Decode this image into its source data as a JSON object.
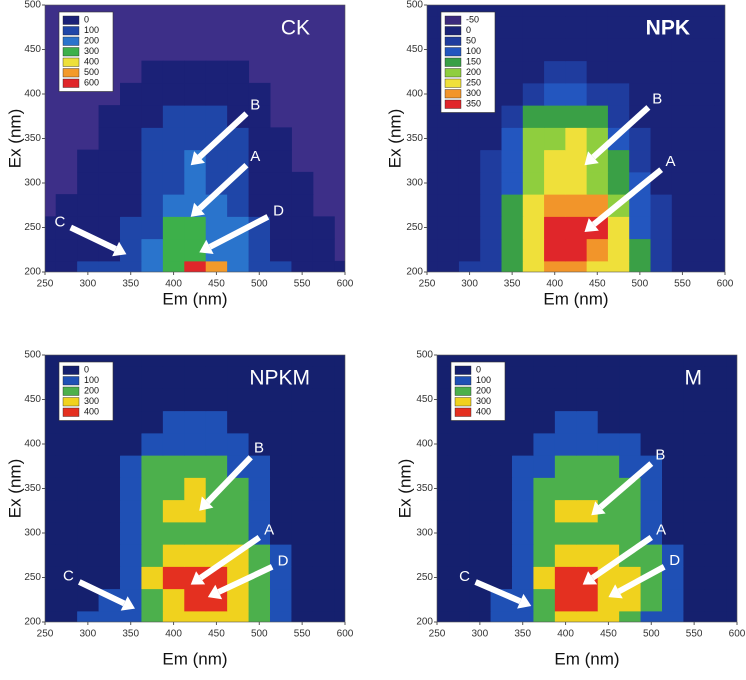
{
  "chart_data": [
    {
      "type": "contour",
      "title": "CK",
      "xlabel": "Em (nm)",
      "ylabel": "Ex (nm)",
      "xlim": [
        250,
        600
      ],
      "ylim": [
        200,
        500
      ],
      "xticks": [
        250,
        300,
        350,
        400,
        450,
        500,
        550,
        600
      ],
      "yticks": [
        200,
        250,
        300,
        350,
        400,
        450,
        500
      ],
      "background": "#3d2f88",
      "levels": [
        0,
        100,
        200,
        300,
        400,
        500,
        600
      ],
      "colors": [
        "#1b2177",
        "#1f46a8",
        "#2a74cc",
        "#3db04a",
        "#ede03a",
        "#f39a2a",
        "#e0262a"
      ],
      "x": [
        250,
        275,
        300,
        325,
        350,
        375,
        400,
        425,
        450,
        475,
        500,
        525,
        550,
        575,
        600
      ],
      "y": [
        200,
        225,
        250,
        275,
        300,
        325,
        350,
        375,
        400,
        425,
        450,
        475,
        500
      ],
      "z": [
        [
          60,
          80,
          110,
          120,
          150,
          200,
          300,
          600,
          500,
          250,
          150,
          100,
          60,
          20,
          0
        ],
        [
          20,
          40,
          60,
          80,
          120,
          200,
          300,
          300,
          250,
          200,
          150,
          80,
          40,
          10,
          -10
        ],
        [
          0,
          10,
          30,
          50,
          100,
          180,
          300,
          300,
          280,
          200,
          120,
          60,
          20,
          0,
          -10
        ],
        [
          -10,
          0,
          10,
          30,
          90,
          150,
          220,
          250,
          220,
          150,
          90,
          40,
          10,
          -10,
          -10
        ],
        [
          -10,
          -10,
          0,
          20,
          80,
          130,
          170,
          200,
          170,
          120,
          70,
          20,
          0,
          -10,
          -10
        ],
        [
          -10,
          -10,
          0,
          10,
          70,
          120,
          160,
          200,
          160,
          110,
          60,
          10,
          -10,
          -10,
          -10
        ],
        [
          -10,
          -10,
          -10,
          0,
          50,
          110,
          140,
          160,
          140,
          100,
          40,
          0,
          -10,
          -10,
          -10
        ],
        [
          -10,
          -10,
          -10,
          0,
          20,
          80,
          110,
          120,
          110,
          60,
          10,
          -10,
          -10,
          -10,
          -10
        ],
        [
          -10,
          -10,
          -10,
          -10,
          0,
          30,
          60,
          70,
          50,
          10,
          0,
          -10,
          -10,
          -10,
          -10
        ],
        [
          -10,
          -10,
          -10,
          -10,
          -10,
          0,
          10,
          20,
          10,
          0,
          -10,
          -10,
          -10,
          -10,
          -10
        ],
        [
          -10,
          -10,
          -10,
          -10,
          -10,
          -10,
          -10,
          -10,
          -10,
          -10,
          -10,
          -10,
          -10,
          -10,
          -10
        ],
        [
          -10,
          -10,
          -10,
          -10,
          -10,
          -10,
          -10,
          -10,
          -10,
          -10,
          -10,
          -10,
          -10,
          -10,
          -10
        ],
        [
          -10,
          -10,
          -10,
          -10,
          -10,
          -10,
          -10,
          -10,
          -10,
          -10,
          -10,
          -10,
          -10,
          -10,
          -10
        ]
      ],
      "annotations": [
        {
          "text": "B",
          "x": 420,
          "y": 320,
          "tail": [
            485,
            378
          ]
        },
        {
          "text": "A",
          "x": 420,
          "y": 262,
          "tail": [
            485,
            320
          ]
        },
        {
          "text": "D",
          "x": 430,
          "y": 222,
          "tail": [
            510,
            262
          ]
        },
        {
          "text": "C",
          "x": 345,
          "y": 220,
          "tail": [
            280,
            250
          ]
        }
      ]
    },
    {
      "type": "contour",
      "title": "NPK",
      "xlabel": "Em (nm)",
      "ylabel": "Ex (nm)",
      "xlim": [
        250,
        600
      ],
      "ylim": [
        200,
        500
      ],
      "xticks": [
        250,
        300,
        350,
        400,
        450,
        500,
        550,
        600
      ],
      "yticks": [
        200,
        250,
        300,
        350,
        400,
        450,
        500
      ],
      "background": "#1d2380",
      "levels": [
        -50,
        0,
        50,
        100,
        150,
        200,
        250,
        300,
        350
      ],
      "colors": [
        "#3b2a7c",
        "#1a2378",
        "#1f3c9e",
        "#2356bf",
        "#3aa046",
        "#8fce3e",
        "#efe03a",
        "#f2952a",
        "#e0262a"
      ],
      "x": [
        250,
        275,
        300,
        325,
        350,
        375,
        400,
        425,
        450,
        475,
        500,
        525,
        550,
        575,
        600
      ],
      "y": [
        200,
        225,
        250,
        275,
        300,
        325,
        350,
        375,
        400,
        425,
        450,
        475,
        500
      ],
      "z": [
        [
          20,
          40,
          60,
          90,
          150,
          250,
          300,
          300,
          280,
          250,
          150,
          80,
          40,
          20,
          10
        ],
        [
          10,
          20,
          40,
          80,
          150,
          250,
          350,
          350,
          330,
          280,
          150,
          80,
          30,
          10,
          0
        ],
        [
          0,
          10,
          30,
          60,
          150,
          260,
          350,
          350,
          350,
          280,
          140,
          60,
          20,
          0,
          0
        ],
        [
          0,
          0,
          20,
          60,
          150,
          250,
          300,
          300,
          300,
          230,
          120,
          50,
          10,
          0,
          0
        ],
        [
          0,
          0,
          20,
          60,
          140,
          220,
          250,
          250,
          230,
          180,
          100,
          40,
          0,
          0,
          0
        ],
        [
          0,
          0,
          10,
          50,
          130,
          220,
          260,
          260,
          230,
          160,
          80,
          20,
          0,
          0,
          0
        ],
        [
          0,
          0,
          0,
          40,
          110,
          200,
          240,
          250,
          210,
          140,
          60,
          10,
          0,
          0,
          0
        ],
        [
          0,
          0,
          0,
          20,
          80,
          150,
          180,
          190,
          150,
          90,
          40,
          0,
          0,
          0,
          0
        ],
        [
          0,
          0,
          0,
          0,
          40,
          80,
          100,
          100,
          80,
          50,
          10,
          0,
          0,
          0,
          0
        ],
        [
          0,
          0,
          0,
          0,
          10,
          30,
          50,
          50,
          40,
          20,
          0,
          0,
          0,
          0,
          0
        ],
        [
          0,
          0,
          0,
          0,
          0,
          0,
          10,
          10,
          0,
          0,
          0,
          0,
          0,
          0,
          0
        ],
        [
          0,
          0,
          0,
          0,
          0,
          0,
          0,
          0,
          0,
          0,
          0,
          0,
          0,
          0,
          0
        ],
        [
          0,
          0,
          0,
          0,
          0,
          0,
          0,
          0,
          0,
          0,
          0,
          0,
          0,
          0,
          0
        ]
      ],
      "annotations": [
        {
          "text": "B",
          "x": 435,
          "y": 320,
          "tail": [
            510,
            385
          ]
        },
        {
          "text": "A",
          "x": 435,
          "y": 245,
          "tail": [
            525,
            315
          ]
        }
      ]
    },
    {
      "type": "contour",
      "title": "NPKM",
      "xlabel": "Em (nm)",
      "ylabel": "Ex (nm)",
      "xlim": [
        250,
        600
      ],
      "ylim": [
        200,
        500
      ],
      "xticks": [
        250,
        300,
        350,
        400,
        450,
        500,
        550,
        600
      ],
      "yticks": [
        200,
        250,
        300,
        350,
        400,
        450,
        500
      ],
      "background": "#18237c",
      "levels": [
        0,
        100,
        200,
        300,
        400
      ],
      "colors": [
        "#15206e",
        "#1f50b5",
        "#4cb04c",
        "#f0d21e",
        "#e43020"
      ],
      "x": [
        250,
        275,
        300,
        325,
        350,
        375,
        400,
        425,
        450,
        475,
        500,
        525,
        550,
        575,
        600
      ],
      "y": [
        200,
        225,
        250,
        275,
        300,
        325,
        350,
        375,
        400,
        425,
        450,
        475,
        500
      ],
      "z": [
        [
          20,
          50,
          100,
          120,
          150,
          250,
          300,
          350,
          350,
          300,
          200,
          100,
          60,
          30,
          10
        ],
        [
          10,
          30,
          60,
          100,
          150,
          280,
          380,
          420,
          400,
          350,
          250,
          120,
          50,
          20,
          10
        ],
        [
          0,
          20,
          40,
          80,
          150,
          300,
          400,
          420,
          400,
          360,
          250,
          180,
          60,
          20,
          0
        ],
        [
          0,
          10,
          30,
          70,
          150,
          280,
          350,
          350,
          330,
          300,
          220,
          100,
          40,
          10,
          0
        ],
        [
          0,
          0,
          20,
          60,
          150,
          240,
          280,
          280,
          260,
          230,
          180,
          80,
          30,
          0,
          0
        ],
        [
          0,
          0,
          10,
          50,
          140,
          250,
          300,
          320,
          290,
          240,
          180,
          70,
          20,
          0,
          0
        ],
        [
          0,
          0,
          0,
          40,
          130,
          240,
          290,
          300,
          270,
          220,
          150,
          60,
          20,
          0,
          0
        ],
        [
          0,
          0,
          0,
          30,
          110,
          200,
          240,
          240,
          220,
          170,
          110,
          50,
          10,
          0,
          0
        ],
        [
          0,
          0,
          0,
          20,
          80,
          140,
          170,
          170,
          150,
          120,
          80,
          30,
          0,
          0,
          0
        ],
        [
          0,
          0,
          0,
          10,
          50,
          90,
          110,
          110,
          100,
          80,
          50,
          10,
          0,
          0,
          0
        ],
        [
          0,
          0,
          0,
          0,
          20,
          50,
          60,
          60,
          60,
          40,
          20,
          0,
          0,
          0,
          0
        ],
        [
          0,
          0,
          0,
          0,
          0,
          20,
          30,
          30,
          20,
          10,
          0,
          0,
          0,
          0,
          0
        ],
        [
          0,
          0,
          0,
          0,
          0,
          0,
          0,
          0,
          0,
          0,
          0,
          0,
          0,
          0,
          0
        ]
      ],
      "annotations": [
        {
          "text": "B",
          "x": 430,
          "y": 325,
          "tail": [
            490,
            385
          ]
        },
        {
          "text": "A",
          "x": 420,
          "y": 242,
          "tail": [
            500,
            295
          ]
        },
        {
          "text": "D",
          "x": 440,
          "y": 228,
          "tail": [
            515,
            262
          ]
        },
        {
          "text": "C",
          "x": 355,
          "y": 215,
          "tail": [
            290,
            245
          ]
        }
      ]
    },
    {
      "type": "contour",
      "title": "M",
      "xlabel": "Em (nm)",
      "ylabel": "Ex (nm)",
      "xlim": [
        250,
        600
      ],
      "ylim": [
        200,
        500
      ],
      "xticks": [
        250,
        300,
        350,
        400,
        450,
        500,
        550,
        600
      ],
      "yticks": [
        200,
        250,
        300,
        350,
        400,
        450,
        500
      ],
      "background": "#18237c",
      "levels": [
        0,
        100,
        200,
        300,
        400
      ],
      "colors": [
        "#15206e",
        "#1f50b5",
        "#4cb04c",
        "#f0d21e",
        "#e43020"
      ],
      "x": [
        250,
        275,
        300,
        325,
        350,
        375,
        400,
        425,
        450,
        475,
        500,
        525,
        550,
        575,
        600
      ],
      "y": [
        200,
        225,
        250,
        275,
        300,
        325,
        350,
        375,
        400,
        425,
        450,
        475,
        500
      ],
      "z": [
        [
          20,
          40,
          80,
          110,
          150,
          250,
          300,
          330,
          320,
          280,
          180,
          100,
          50,
          20,
          10
        ],
        [
          10,
          30,
          60,
          100,
          160,
          290,
          400,
          420,
          380,
          320,
          230,
          120,
          50,
          20,
          0
        ],
        [
          0,
          20,
          40,
          80,
          160,
          300,
          410,
          410,
          380,
          330,
          240,
          170,
          60,
          10,
          0
        ],
        [
          0,
          10,
          30,
          70,
          150,
          270,
          340,
          340,
          310,
          270,
          200,
          100,
          30,
          0,
          0
        ],
        [
          0,
          0,
          20,
          60,
          140,
          230,
          270,
          270,
          250,
          210,
          160,
          70,
          20,
          0,
          0
        ],
        [
          0,
          0,
          10,
          50,
          140,
          240,
          300,
          310,
          280,
          230,
          170,
          60,
          20,
          0,
          0
        ],
        [
          0,
          0,
          0,
          40,
          130,
          230,
          280,
          290,
          260,
          210,
          140,
          50,
          10,
          0,
          0
        ],
        [
          0,
          0,
          0,
          30,
          100,
          190,
          230,
          230,
          210,
          160,
          100,
          40,
          0,
          0,
          0
        ],
        [
          0,
          0,
          0,
          20,
          70,
          130,
          160,
          160,
          140,
          110,
          70,
          20,
          0,
          0,
          0
        ],
        [
          0,
          0,
          0,
          10,
          40,
          80,
          100,
          100,
          90,
          70,
          40,
          10,
          0,
          0,
          0
        ],
        [
          0,
          0,
          0,
          0,
          20,
          40,
          50,
          50,
          50,
          30,
          10,
          0,
          0,
          0,
          0
        ],
        [
          0,
          0,
          0,
          0,
          0,
          10,
          20,
          20,
          10,
          0,
          0,
          0,
          0,
          0,
          0
        ],
        [
          0,
          0,
          0,
          0,
          0,
          0,
          0,
          0,
          0,
          0,
          0,
          0,
          0,
          0,
          0
        ]
      ],
      "annotations": [
        {
          "text": "B",
          "x": 430,
          "y": 320,
          "tail": [
            500,
            378
          ]
        },
        {
          "text": "A",
          "x": 420,
          "y": 242,
          "tail": [
            500,
            295
          ]
        },
        {
          "text": "D",
          "x": 450,
          "y": 228,
          "tail": [
            515,
            262
          ]
        },
        {
          "text": "C",
          "x": 360,
          "y": 218,
          "tail": [
            295,
            245
          ]
        }
      ]
    }
  ]
}
